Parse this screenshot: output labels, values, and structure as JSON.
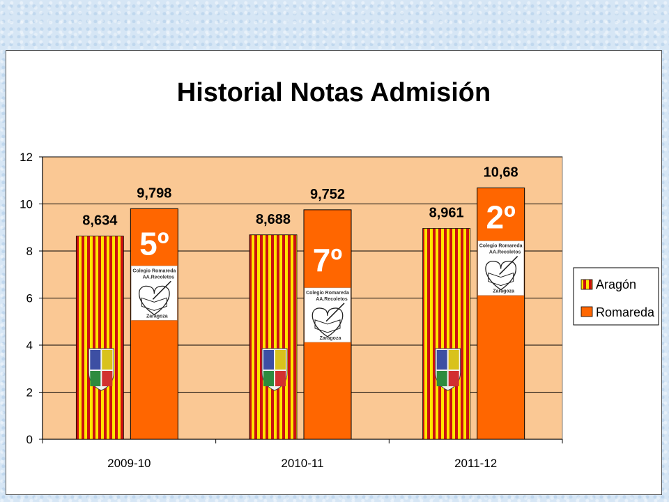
{
  "chart_data": {
    "type": "bar",
    "title": "Historial Notas Admisión",
    "categories": [
      "2009-10",
      "2010-11",
      "2011-12"
    ],
    "series": [
      {
        "name": "Aragón",
        "values": [
          8.634,
          8.688,
          8.961
        ],
        "labels": [
          "8,634",
          "8,688",
          "8,961"
        ]
      },
      {
        "name": "Romareda",
        "values": [
          9.798,
          9.752,
          10.68
        ],
        "labels": [
          "9,798",
          "9,752",
          "10,68"
        ]
      }
    ],
    "ranks": [
      "5º",
      "7º",
      "2º"
    ],
    "ylim": [
      0,
      12
    ],
    "yticks": [
      "0",
      "2",
      "4",
      "6",
      "8",
      "10",
      "12"
    ],
    "xlabel": "",
    "ylabel": "",
    "grid": true,
    "legend_position": "right",
    "colors": {
      "plot_background": "#fac894",
      "romareda": "#ff6600",
      "aragon_red": "#cc1111",
      "aragon_yellow": "#ffe600"
    },
    "logo_text": {
      "line1": "Colegio Romareda",
      "line2": "AA.Recoletos",
      "line3": "Zaragoza"
    }
  }
}
